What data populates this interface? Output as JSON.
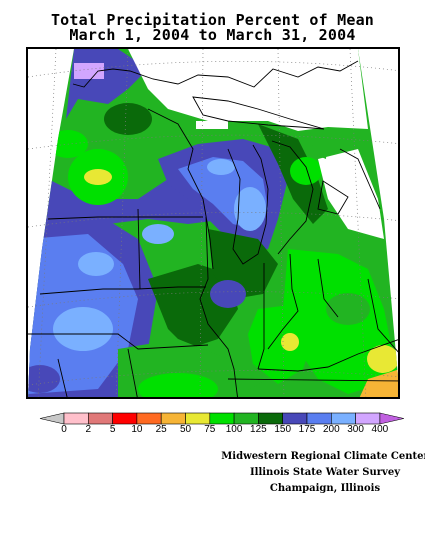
{
  "title": {
    "line1": "Total Precipitation Percent of Mean",
    "line2": "March 1, 2004 to March 31, 2004"
  },
  "legend": {
    "labels": [
      "0",
      "2",
      "5",
      "10",
      "25",
      "50",
      "75",
      "100",
      "125",
      "150",
      "175",
      "200",
      "300",
      "400"
    ],
    "colors": [
      "#ffc0cb",
      "#e07878",
      "#ff0000",
      "#ff6a22",
      "#f6b436",
      "#e8e834",
      "#00e000",
      "#22b422",
      "#0a6a0a",
      "#4848b8",
      "#5a7ef0",
      "#7ab0ff",
      "#d2a6ff"
    ],
    "low_arrow_color": "#c8c8c8",
    "high_arrow_color": "#c060e0"
  },
  "credits": {
    "line1": "Midwestern Regional Climate Center",
    "line2": "Illinois State Water Survey",
    "line3": "Champaign, Illinois"
  }
}
